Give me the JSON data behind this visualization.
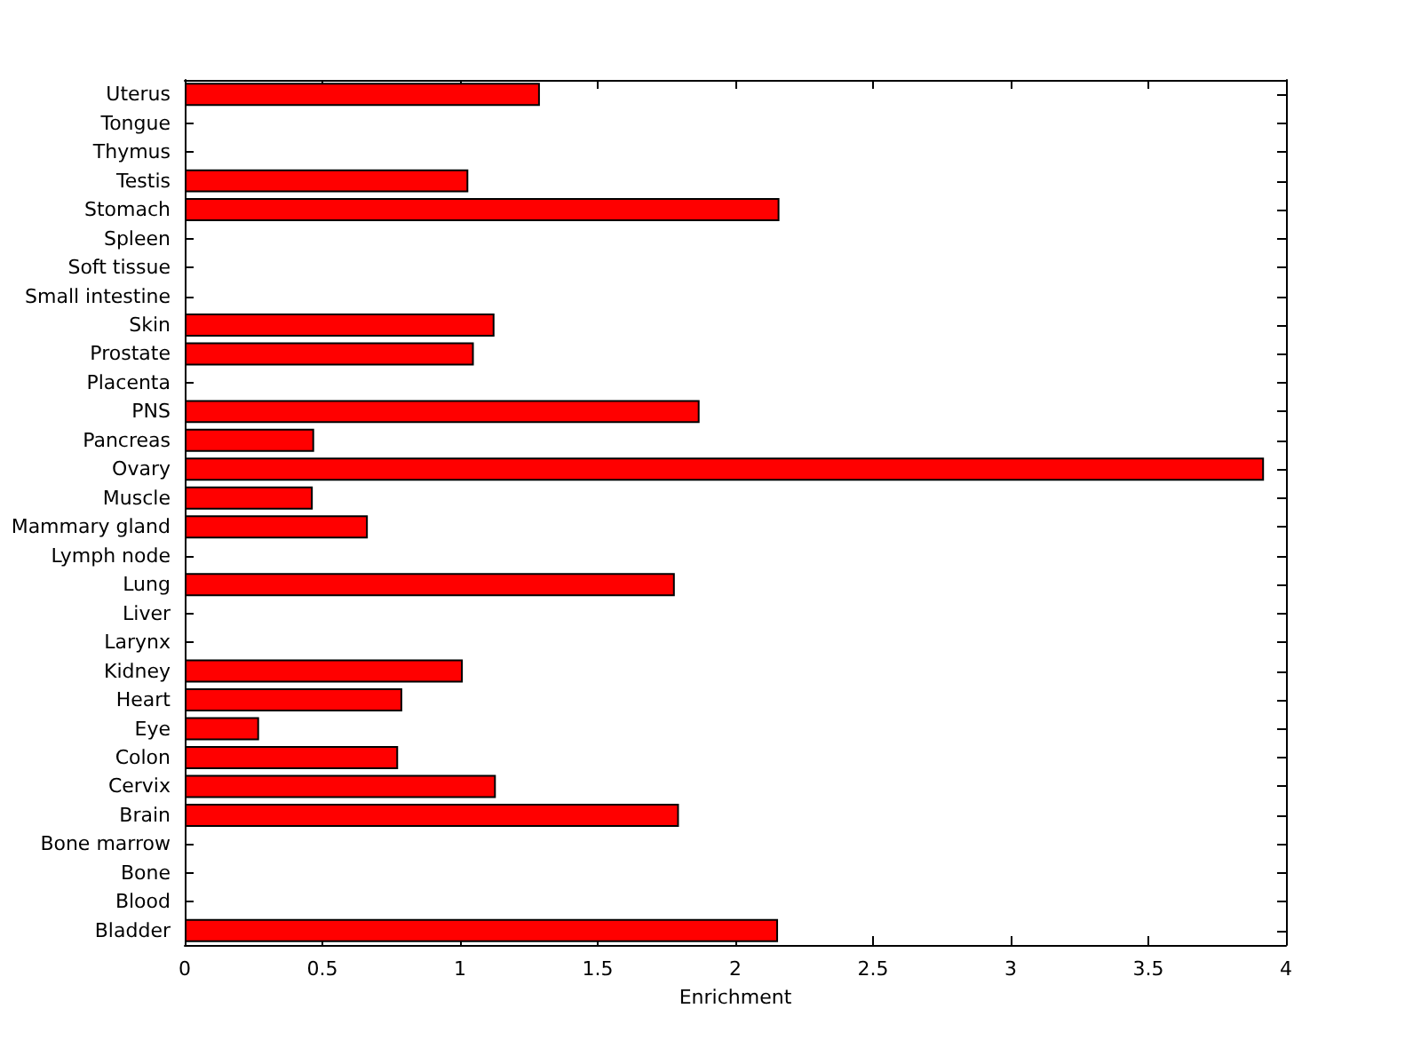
{
  "chart_data": {
    "type": "bar",
    "orientation": "horizontal",
    "xlabel": "Enrichment",
    "categories": [
      "Uterus",
      "Tongue",
      "Thymus",
      "Testis",
      "Stomach",
      "Spleen",
      "Soft tissue",
      "Small intestine",
      "Skin",
      "Prostate",
      "Placenta",
      "PNS",
      "Pancreas",
      "Ovary",
      "Muscle",
      "Mammary gland",
      "Lymph node",
      "Lung",
      "Liver",
      "Larynx",
      "Kidney",
      "Heart",
      "Eye",
      "Colon",
      "Cervix",
      "Brain",
      "Bone marrow",
      "Bone",
      "Blood",
      "Bladder"
    ],
    "values": [
      1.29,
      0,
      0,
      1.03,
      2.16,
      0,
      0,
      0,
      1.125,
      1.05,
      0,
      1.87,
      0.47,
      3.92,
      0.465,
      0.665,
      0,
      1.78,
      0,
      0,
      1.01,
      0.79,
      0.27,
      0.775,
      1.13,
      1.795,
      0,
      0,
      0,
      2.155
    ],
    "color": "#ff0000",
    "xlim": [
      0,
      4
    ],
    "xticks": [
      0,
      0.5,
      1,
      1.5,
      2,
      2.5,
      3,
      3.5,
      4
    ],
    "grid": false
  }
}
